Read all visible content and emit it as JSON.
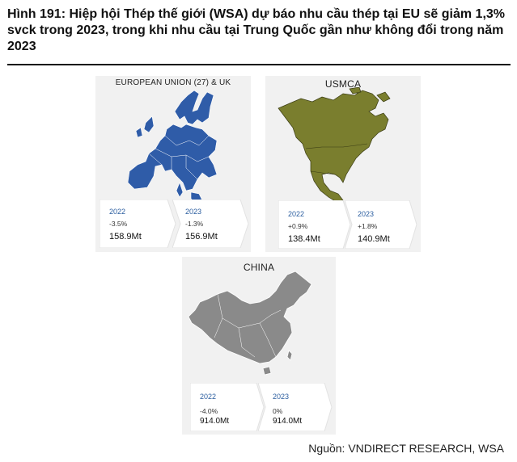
{
  "title": "Hình 191: Hiệp hội Thép thế giới (WSA) dự báo nhu cầu thép tại EU sẽ giảm 1,3% svck trong 2023, trong khi nhu cầu tại Trung Quốc gần như không đổi trong năm 2023",
  "source": "Nguồn: VNDIRECT RESEARCH, WSA",
  "colors": {
    "eu": "#2f5ca8",
    "usmca": "#7a7e2e",
    "china": "#8a8a8a"
  },
  "panels": {
    "eu": {
      "label": "EUROPEAN UNION (27) & UK",
      "cards": [
        {
          "year": "2022",
          "change": "-3.5%",
          "value": "158.9Mt"
        },
        {
          "year": "2023",
          "change": "-1.3%",
          "value": "156.9Mt"
        }
      ]
    },
    "usmca": {
      "label": "USMCA",
      "cards": [
        {
          "year": "2022",
          "change": "+0.9%",
          "value": "138.4Mt"
        },
        {
          "year": "2023",
          "change": "+1.8%",
          "value": "140.9Mt"
        }
      ]
    },
    "china": {
      "label": "CHINA",
      "cards": [
        {
          "year": "2022",
          "change": "-4.0%",
          "value": "914.0Mt"
        },
        {
          "year": "2023",
          "change": "0%",
          "value": "914.0Mt"
        }
      ]
    }
  }
}
